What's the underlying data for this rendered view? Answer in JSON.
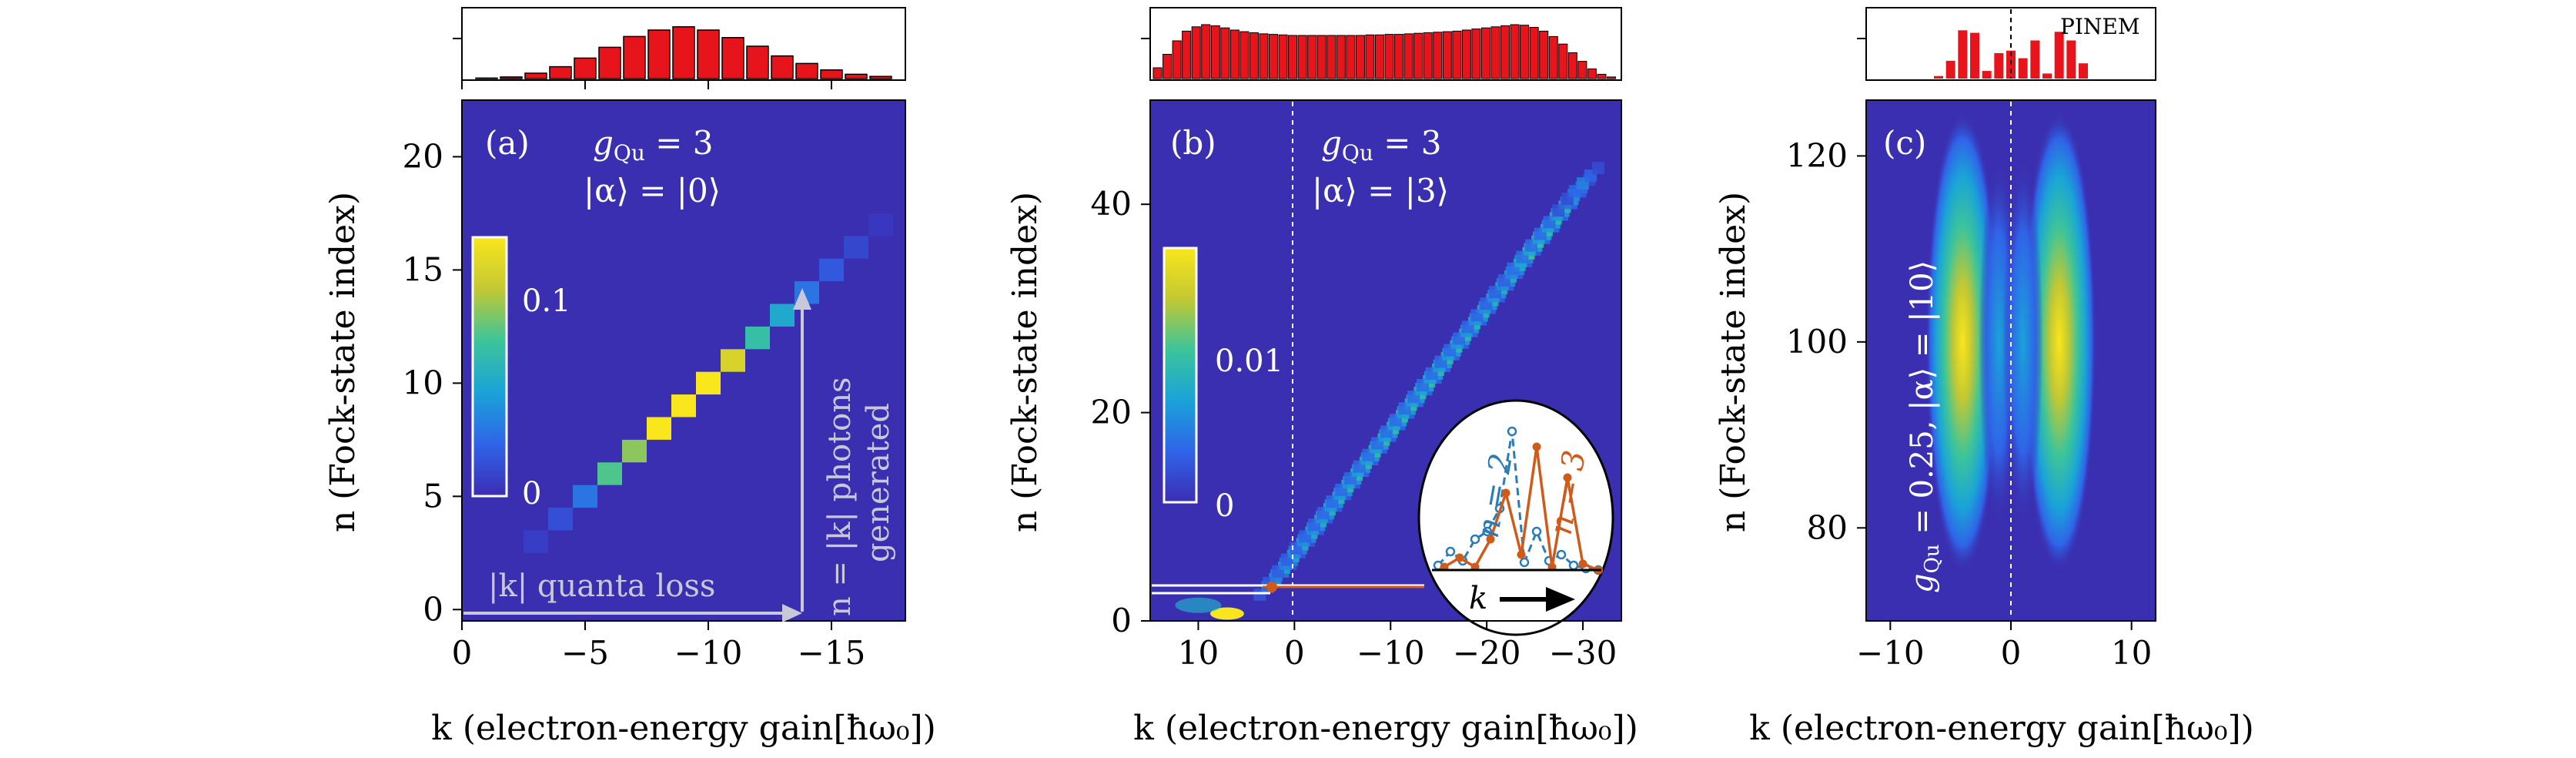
{
  "figure": {
    "panels": [
      {
        "id": "a",
        "panel_label": "(a)",
        "param_line1": "g",
        "param_sub": "Qu",
        "param_eq": " = 3",
        "param_line2": "|α⟩ = |0⟩",
        "ylabel": "n (Fock-state index)",
        "xlabel": "k (electron-energy gain[ħω₀])",
        "xticks": [
          "0",
          "−5",
          "−10",
          "−15"
        ],
        "yticks": [
          "0",
          "5",
          "10",
          "15",
          "20"
        ],
        "colorbar_ticks": [
          "0",
          "0.1"
        ],
        "annotation_loss": "|k| quanta loss",
        "annotation_gen_line1": "n = |k| photons",
        "annotation_gen_line2": "generated"
      },
      {
        "id": "b",
        "panel_label": "(b)",
        "param_line1": "g",
        "param_sub": "Qu",
        "param_eq": " = 3",
        "param_line2": "|α⟩ = |3⟩",
        "ylabel": "n (Fock-state index)",
        "xlabel": "k (electron-energy gain[ħω₀])",
        "xticks": [
          "10",
          "0",
          "−10",
          "−20",
          "−30"
        ],
        "yticks": [
          "0",
          "20",
          "40"
        ],
        "colorbar_ticks": [
          "0",
          "0.01"
        ],
        "inset_n2": "n = 2",
        "inset_n3": "n = 3",
        "inset_k": "k"
      },
      {
        "id": "c",
        "panel_label": "(c)",
        "param_vertical": "g",
        "param_vertical_sub": "Qu",
        "param_vertical_rest": " = 0.25, |α⟩ = |10⟩",
        "ylabel": "n (Fock-state index)",
        "xlabel": "k (electron-energy gain[ħω₀])",
        "xticks": [
          "−10",
          "0",
          "10"
        ],
        "yticks": [
          "80",
          "100",
          "120"
        ],
        "pinem_label": "PINEM"
      }
    ]
  },
  "colors": {
    "background_map": "#3a2fb0",
    "bar_fill": "#e8141c",
    "annotation_gray": "#c8c8d8",
    "inset_blue": "#2a7cb8",
    "inset_orange": "#d05a1a"
  },
  "chart_data": [
    {
      "type": "heatmap",
      "panel": "a",
      "xlabel": "k (electron-energy gain[ħω₀])",
      "ylabel": "n (Fock-state index)",
      "xlim": [
        0,
        -18
      ],
      "ylim": [
        -0.5,
        22.5
      ],
      "colorbar_range": [
        0,
        0.16
      ],
      "cells": [
        {
          "k": -3,
          "n": 3,
          "v": 0.01
        },
        {
          "k": -4,
          "n": 4,
          "v": 0.02
        },
        {
          "k": -5,
          "n": 5,
          "v": 0.04
        },
        {
          "k": -6,
          "n": 6,
          "v": 0.1
        },
        {
          "k": -7,
          "n": 7,
          "v": 0.115
        },
        {
          "k": -8,
          "n": 8,
          "v": 0.16
        },
        {
          "k": -9,
          "n": 9,
          "v": 0.16
        },
        {
          "k": -10,
          "n": 10,
          "v": 0.16
        },
        {
          "k": -11,
          "n": 11,
          "v": 0.14
        },
        {
          "k": -12,
          "n": 12,
          "v": 0.09
        },
        {
          "k": -13,
          "n": 13,
          "v": 0.07
        },
        {
          "k": -14,
          "n": 14,
          "v": 0.04
        },
        {
          "k": -15,
          "n": 15,
          "v": 0.025
        },
        {
          "k": -16,
          "n": 16,
          "v": 0.015
        },
        {
          "k": -17,
          "n": 17,
          "v": 0.006
        }
      ],
      "marginal": {
        "k": [
          -1,
          -2,
          -3,
          -4,
          -5,
          -6,
          -7,
          -8,
          -9,
          -10,
          -11,
          -12,
          -13,
          -14,
          -15,
          -16,
          -17
        ],
        "values": [
          0.01,
          0.03,
          0.1,
          0.22,
          0.38,
          0.58,
          0.78,
          0.9,
          0.96,
          0.9,
          0.76,
          0.6,
          0.42,
          0.28,
          0.16,
          0.08,
          0.04
        ]
      }
    },
    {
      "type": "heatmap",
      "panel": "b",
      "xlabel": "k (electron-energy gain[ħω₀])",
      "ylabel": "n (Fock-state index)",
      "xlim": [
        15,
        -34
      ],
      "ylim": [
        0,
        50
      ],
      "colorbar_range": [
        0,
        0.018
      ],
      "ridge": {
        "k_start": 2,
        "k_end": -30,
        "n_start": 4,
        "n_end": 42
      },
      "marginal": {
        "k_range": [
          15,
          -33
        ],
        "values": [
          0.2,
          0.45,
          0.7,
          0.88,
          0.96,
          1.0,
          0.98,
          0.94,
          0.9,
          0.87,
          0.85,
          0.83,
          0.82,
          0.81,
          0.8,
          0.8,
          0.8,
          0.8,
          0.8,
          0.8,
          0.8,
          0.8,
          0.81,
          0.81,
          0.82,
          0.82,
          0.83,
          0.84,
          0.85,
          0.86,
          0.87,
          0.88,
          0.9,
          0.92,
          0.94,
          0.96,
          0.98,
          1.0,
          0.99,
          0.95,
          0.88,
          0.78,
          0.64,
          0.48,
          0.32,
          0.18,
          0.08,
          0.03
        ]
      }
    },
    {
      "type": "heatmap",
      "panel": "c",
      "xlabel": "k (electron-energy gain[ħω₀])",
      "ylabel": "n (Fock-state index)",
      "xlim": [
        -12,
        12
      ],
      "ylim": [
        70,
        126
      ],
      "lobes": [
        {
          "k": -4,
          "n": 100,
          "v": 1.0
        },
        {
          "k": 4,
          "n": 100,
          "v": 1.0
        },
        {
          "k": -1,
          "n": 100,
          "v": 0.35
        },
        {
          "k": 1,
          "n": 100,
          "v": 0.35
        }
      ],
      "marginal": {
        "k": [
          -6,
          -5,
          -4,
          -3,
          -2,
          -1,
          0,
          1,
          2,
          3,
          4,
          5,
          6
        ],
        "values": [
          0.05,
          0.35,
          0.95,
          0.9,
          0.15,
          0.5,
          0.55,
          0.4,
          0.75,
          0.1,
          0.92,
          0.75,
          0.3
        ]
      }
    }
  ]
}
